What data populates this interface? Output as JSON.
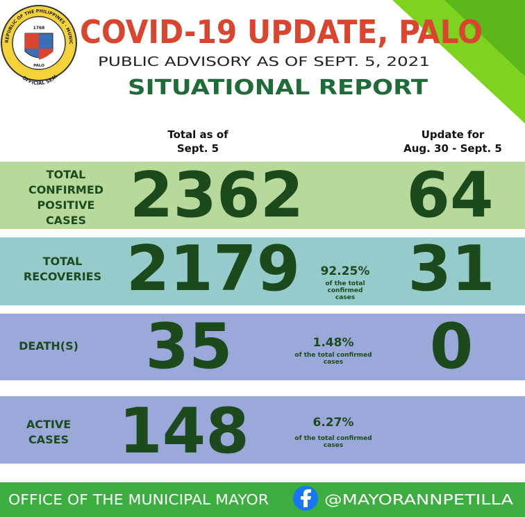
{
  "seal": {
    "ring_top": "REPUBLIC OF THE PHILIPPINES · MUNICIPALITY OF PALO · PROVINCE OF LEYTE",
    "year": "1768",
    "town": "PALO",
    "ring_bottom": "OFFICIAL SEAL"
  },
  "header": {
    "title": "COVID-19 UPDATE, PALO",
    "subtitle": "PUBLIC ADVISORY AS OF SEPT. 5, 2021",
    "report": "SITUATIONAL REPORT"
  },
  "columns": {
    "total": [
      "Total as of",
      "Sept. 5"
    ],
    "update": [
      "Update for",
      "Aug. 30 - Sept. 5"
    ]
  },
  "rows": [
    {
      "label": [
        "TOTAL",
        "CONFIRMED",
        "POSITIVE",
        "CASES"
      ],
      "total": 2362,
      "update": 64
    },
    {
      "label": [
        "TOTAL",
        "RECOVERIES"
      ],
      "total": 2179,
      "percent": "92.25%",
      "note": [
        "of the total",
        "confirmed",
        "cases"
      ],
      "update": 31
    },
    {
      "label": [
        "DEATH(S)"
      ],
      "total": 35,
      "percent": "1.48%",
      "note": [
        "of the total confirmed",
        "cases"
      ],
      "update": 0
    },
    {
      "label": [
        "ACTIVE",
        "CASES"
      ],
      "total": 148,
      "percent": "6.27%",
      "note": [
        "of the total confirmed",
        "cases"
      ]
    }
  ],
  "footer": {
    "office": "OFFICE OF THE MUNICIPAL MAYOR",
    "handle": "@MAYORANNPETILLA"
  }
}
